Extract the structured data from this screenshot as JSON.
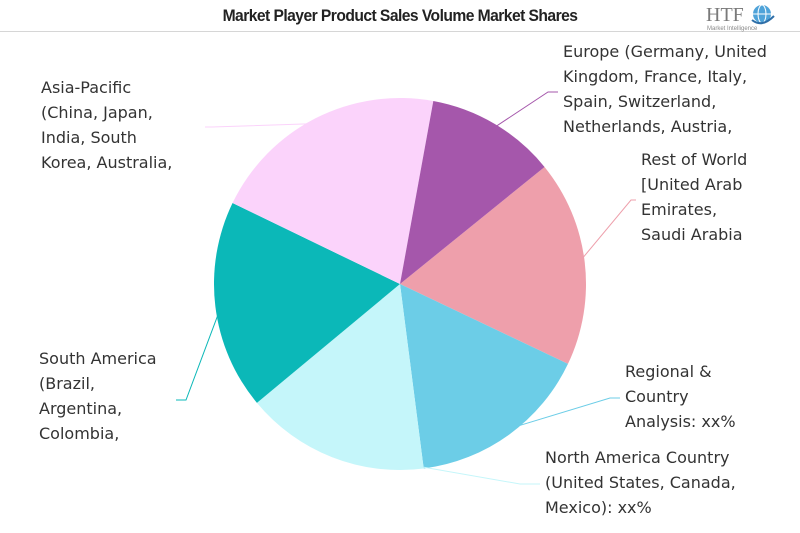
{
  "header": {
    "title": "Market Player Product Sales Volume Market Shares",
    "logo_text": "HTF",
    "logo_tagline": "Market Intelligence"
  },
  "chart_data": {
    "type": "pie",
    "title": "Market Player Product Sales Volume Market Shares",
    "slices": [
      {
        "label": "Rest of World\n[United Arab\nEmirates,\nSaudi Arabia",
        "value": 17.9,
        "color": "#ee9fab"
      },
      {
        "label": "Regional &\nCountry\nAnalysis: xx%",
        "value": 15.9,
        "color": "#6ccde7"
      },
      {
        "label": "North America Country\n(United States, Canada,\nMexico): xx%",
        "value": 16.0,
        "color": "#c5f6fa"
      },
      {
        "label": "South America\n(Brazil,\nArgentina,\nColombia,",
        "value": 18.2,
        "color": "#0bb8b8"
      },
      {
        "label": "Asia-Pacific\n(China, Japan,\nIndia, South\nKorea, Australia,",
        "value": 20.7,
        "color": "#fbd3fb"
      },
      {
        "label": "Europe (Germany, United\nKingdom, France, Italy,\nSpain, Switzerland,\nNetherlands, Austria,",
        "value": 11.3,
        "color": "#a557ab"
      }
    ]
  }
}
